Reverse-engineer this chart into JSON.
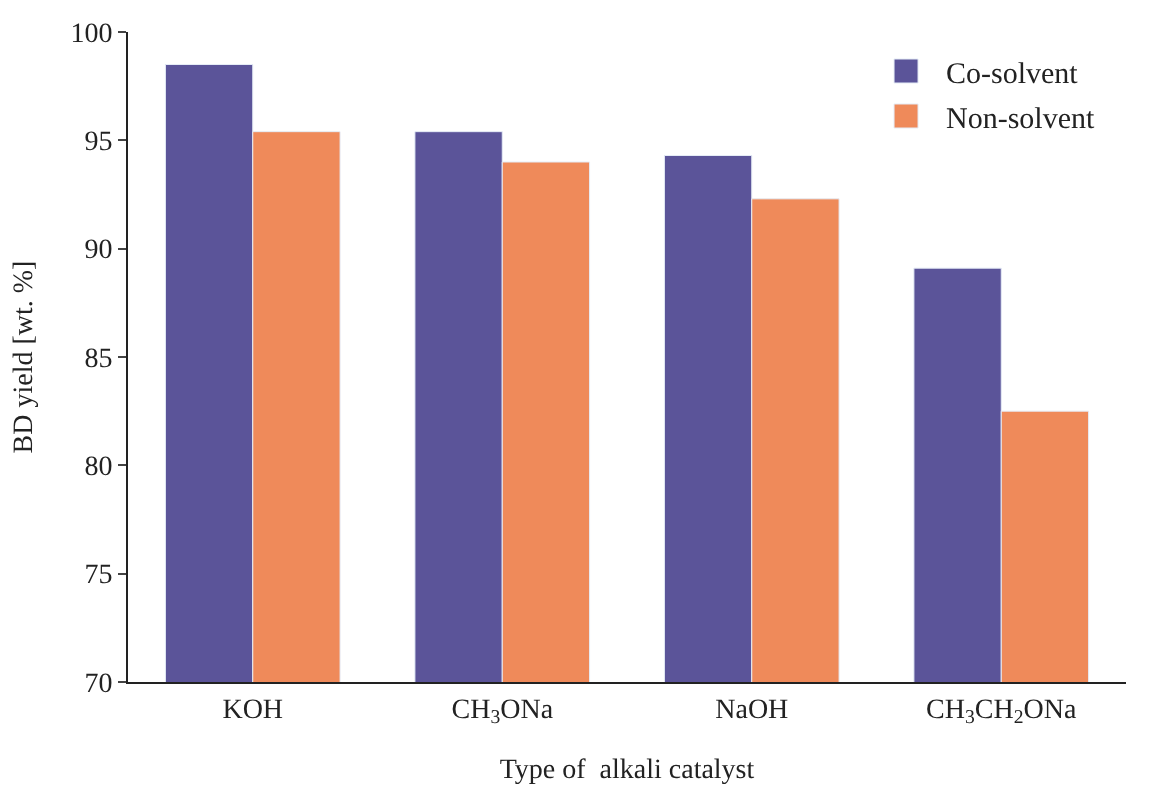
{
  "chart_data": {
    "type": "bar",
    "xlabel": "Type of  alkali catalyst",
    "ylabel": "BD yield [wt. %]",
    "categories": [
      "KOH",
      "CH$_{3}$ONa",
      "NaOH",
      "CH$_{3}$CH$_{2}$ONa"
    ],
    "series": [
      {
        "name": "Co-solvent",
        "color": "#5b5499",
        "values": [
          98.5,
          95.4,
          94.3,
          89.1
        ]
      },
      {
        "name": "Non-solvent",
        "color": "#ef8a5a",
        "values": [
          95.4,
          94.0,
          92.3,
          82.5
        ]
      }
    ],
    "ylim": [
      70,
      100
    ],
    "yticks": [
      70,
      75,
      80,
      85,
      90,
      95,
      100
    ],
    "grid": false,
    "legend": "top right"
  }
}
